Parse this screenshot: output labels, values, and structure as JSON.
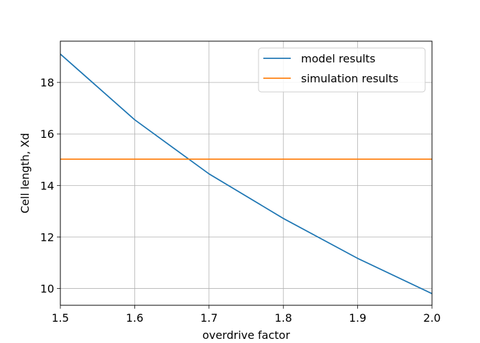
{
  "chart_data": {
    "type": "line",
    "title": "",
    "xlabel": "overdrive factor",
    "ylabel": "Cell length, Xd",
    "xlim": [
      1.5,
      2.0
    ],
    "ylim": [
      9.35,
      19.6
    ],
    "xticks": [
      1.5,
      1.6,
      1.7,
      1.8,
      1.9,
      2.0
    ],
    "xtick_labels": [
      "1.5",
      "1.6",
      "1.7",
      "1.8",
      "1.9",
      "2.0"
    ],
    "yticks": [
      10,
      12,
      14,
      16,
      18
    ],
    "ytick_labels": [
      "10",
      "12",
      "14",
      "16",
      "18"
    ],
    "grid": true,
    "legend_position": "upper right",
    "series": [
      {
        "name": "model results",
        "color": "#1f77b4",
        "x": [
          1.5,
          1.6,
          1.7,
          1.8,
          1.9,
          2.0
        ],
        "y": [
          19.1,
          16.55,
          14.45,
          12.72,
          11.17,
          9.8
        ]
      },
      {
        "name": "simulation results",
        "color": "#ff7f0e",
        "x": [
          1.5,
          2.0
        ],
        "y": [
          15.02,
          15.02
        ]
      }
    ]
  }
}
